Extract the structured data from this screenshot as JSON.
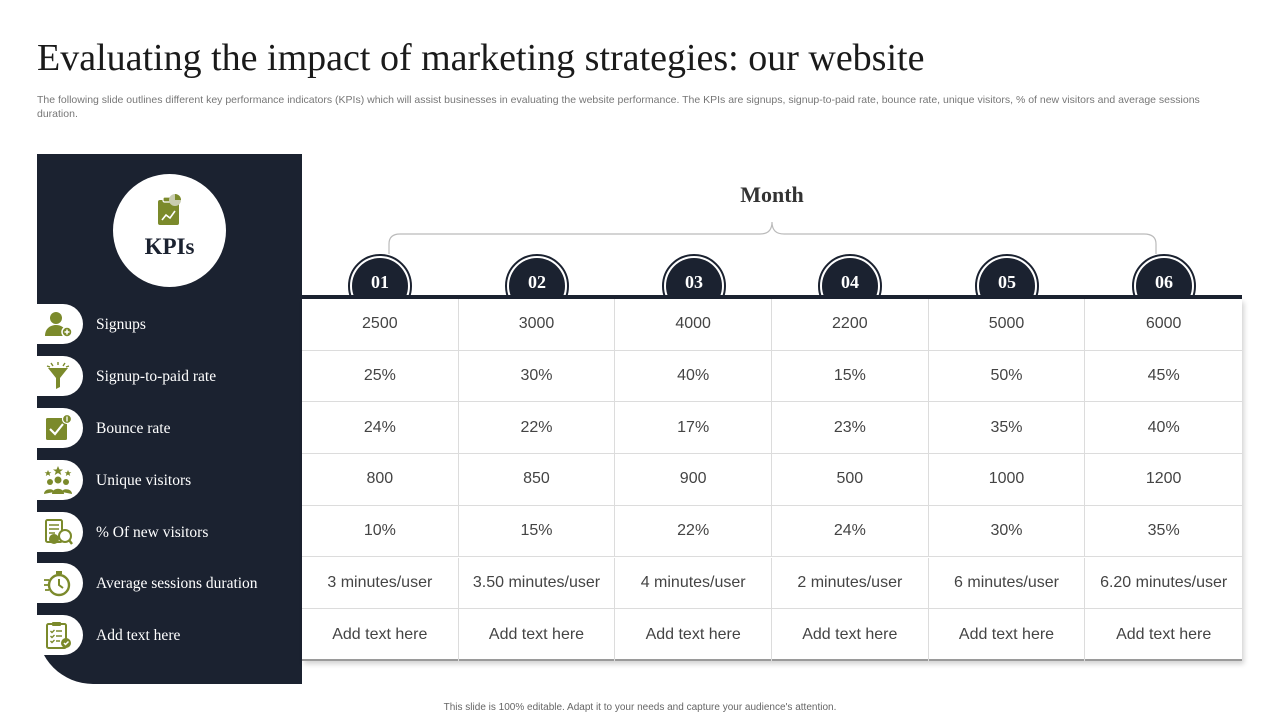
{
  "page": {
    "title": "Evaluating the impact of marketing strategies: our website",
    "subtitle": "The following slide outlines different key performance indicators (KPIs) which will assist businesses in evaluating the website performance. The KPIs are signups, signup-to-paid rate, bounce rate, unique visitors, % of new visitors and average sessions duration.",
    "footer": "This slide is 100% editable. Adapt it to your needs and capture your audience's attention."
  },
  "colors": {
    "navy": "#1b2230",
    "olive": "#7b8a2b",
    "white": "#ffffff"
  },
  "sidebar": {
    "heading": "KPIs",
    "heading_icon": "report-icon",
    "kpis": [
      {
        "label": "Signups",
        "icon": "user-add-icon"
      },
      {
        "label": "Signup-to-paid rate",
        "icon": "funnel-icon"
      },
      {
        "label": "Bounce rate",
        "icon": "checklist-icon"
      },
      {
        "label": "Unique visitors",
        "icon": "group-icon"
      },
      {
        "label": "% Of new visitors",
        "icon": "document-search-icon"
      },
      {
        "label": "Average sessions duration",
        "icon": "stopwatch-icon"
      },
      {
        "label": "Add text here",
        "icon": "clipboard-icon"
      }
    ]
  },
  "table": {
    "group_header": "Month",
    "months": [
      "01",
      "02",
      "03",
      "04",
      "05",
      "06"
    ],
    "rows": [
      [
        "2500",
        "3000",
        "4000",
        "2200",
        "5000",
        "6000"
      ],
      [
        "25%",
        "30%",
        "40%",
        "15%",
        "50%",
        "45%"
      ],
      [
        "24%",
        "22%",
        "17%",
        "23%",
        "35%",
        "40%"
      ],
      [
        "800",
        "850",
        "900",
        "500",
        "1000",
        "1200"
      ],
      [
        "10%",
        "15%",
        "22%",
        "24%",
        "30%",
        "35%"
      ],
      [
        "3 minutes/user",
        "3.50 minutes/user",
        "4 minutes/user",
        "2 minutes/user",
        "6 minutes/user",
        "6.20 minutes/user"
      ],
      [
        "Add text here",
        "Add text here",
        "Add text here",
        "Add text here",
        "Add text here",
        "Add text here"
      ]
    ]
  }
}
